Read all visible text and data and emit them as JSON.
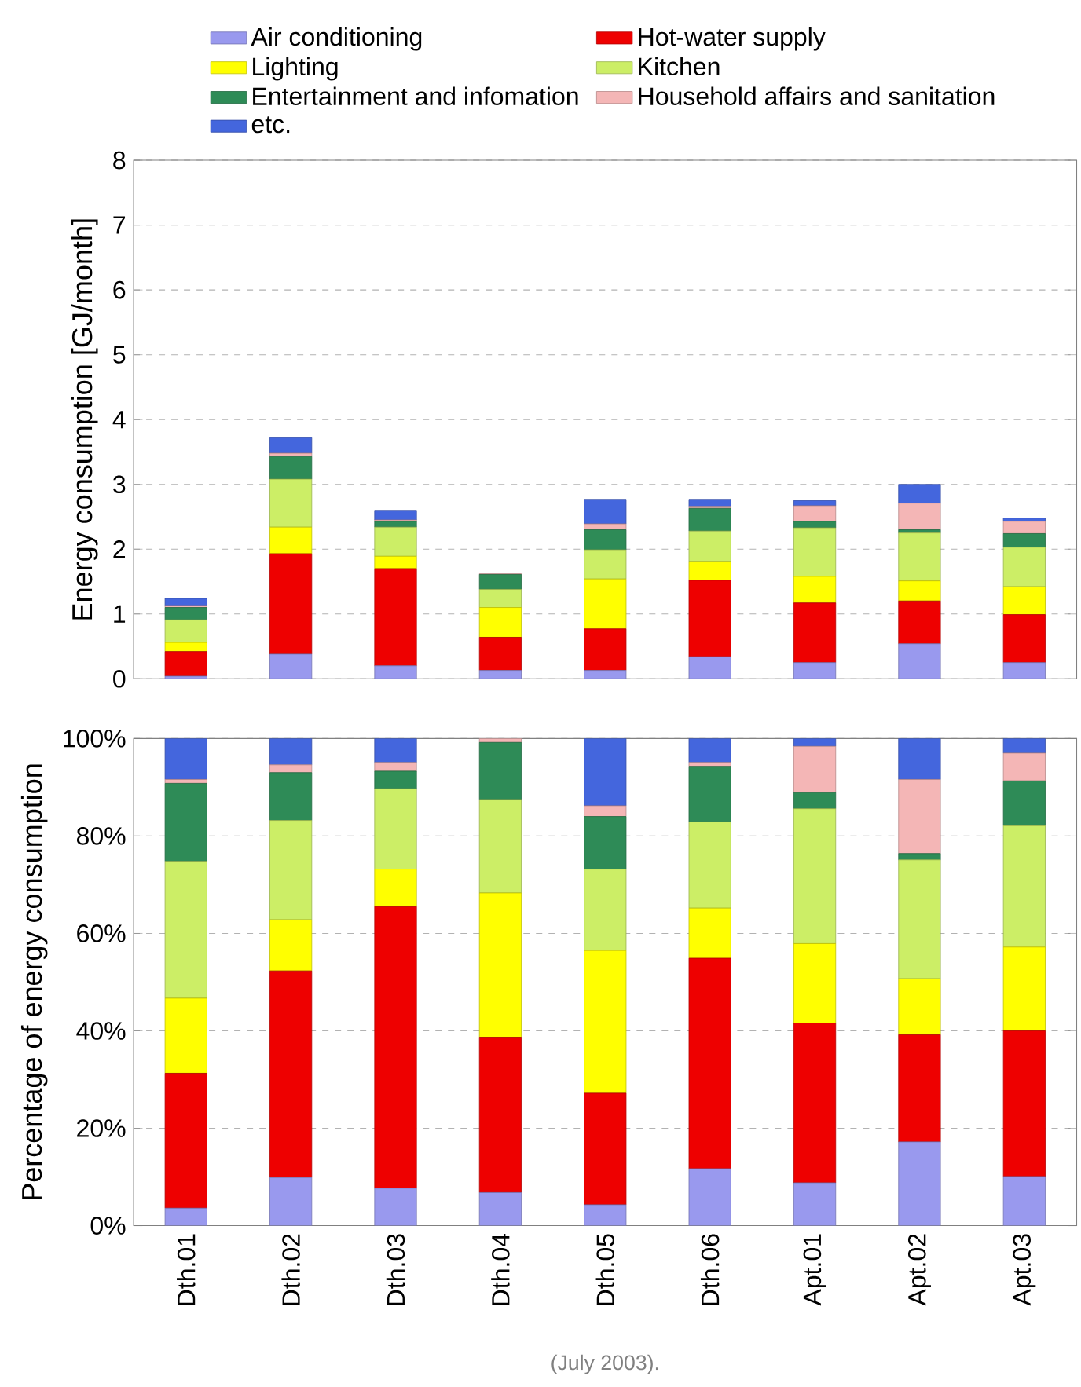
{
  "chart_data": [
    {
      "type": "bar",
      "stacked": true,
      "ylabel": "Energy consumption [GJ/month]",
      "categories": [
        null,
        null,
        null,
        null,
        null,
        null,
        null,
        null,
        null
      ],
      "ylim": [
        0,
        8
      ],
      "yticks": [
        0,
        1,
        2,
        3,
        4,
        5,
        6,
        7,
        8
      ],
      "grid": "y",
      "legend": "top",
      "tick_labels": "y",
      "series": [
        {
          "name": "Air conditioning",
          "color": "#9999ee",
          "values": [
            0.04,
            0.38,
            0.2,
            0.13,
            0.13,
            0.34,
            0.25,
            0.54,
            0.25
          ]
        },
        {
          "name": "Hot-water supply",
          "color": "#ee0000",
          "values": [
            0.38,
            1.55,
            1.5,
            0.51,
            0.64,
            1.18,
            0.92,
            0.66,
            0.74
          ]
        },
        {
          "name": "Lighting",
          "color": "#ffff00",
          "values": [
            0.14,
            0.41,
            0.19,
            0.46,
            0.77,
            0.29,
            0.41,
            0.31,
            0.43
          ]
        },
        {
          "name": "Kitchen",
          "color": "#ccee66",
          "values": [
            0.35,
            0.74,
            0.45,
            0.28,
            0.45,
            0.47,
            0.75,
            0.74,
            0.61
          ]
        },
        {
          "name": "Entertainment and infomation",
          "color": "#2e8b57",
          "values": [
            0.19,
            0.35,
            0.09,
            0.23,
            0.31,
            0.35,
            0.1,
            0.05,
            0.21
          ]
        },
        {
          "name": "Household affairs and sanitation",
          "color": "#f4b6b6",
          "values": [
            0.03,
            0.05,
            0.02,
            0.01,
            0.09,
            0.03,
            0.24,
            0.41,
            0.19
          ]
        },
        {
          "name": "etc.",
          "color": "#4466dd",
          "values": [
            0.11,
            0.24,
            0.15,
            0.0,
            0.38,
            0.11,
            0.08,
            0.29,
            0.05
          ]
        }
      ]
    },
    {
      "type": "bar",
      "stacked": true,
      "ylabel": "Percentage of energy consumption",
      "categories": [
        "Dth.01",
        "Dth.02",
        "Dth.03",
        "Dth.04",
        "Dth.05",
        "Dth.06",
        "Apt.01",
        "Apt.02",
        "Apt.03"
      ],
      "ylim": [
        0,
        100
      ],
      "yticks": [
        {
          "value": 0,
          "label": "0%"
        },
        {
          "value": 20,
          "label": "20%"
        },
        {
          "value": 40,
          "label": "40%"
        },
        {
          "value": 60,
          "label": "60%"
        },
        {
          "value": 80,
          "label": "80%"
        },
        {
          "value": 100,
          "label": "100%"
        }
      ],
      "grid": "y",
      "annotations": [
        "(July 2003)."
      ],
      "series": [
        {
          "color": "#9999ee",
          "values": [
            3.6,
            9.9,
            7.7,
            6.8,
            4.3,
            11.7,
            8.8,
            17.2,
            10.1
          ]
        },
        {
          "color": "#ee0000",
          "values": [
            27.7,
            42.4,
            57.8,
            31.9,
            22.9,
            43.2,
            32.8,
            22.0,
            29.9
          ]
        },
        {
          "color": "#ffff00",
          "values": [
            15.4,
            10.5,
            7.7,
            29.6,
            29.3,
            10.3,
            16.3,
            11.5,
            17.2
          ]
        },
        {
          "color": "#ccee66",
          "values": [
            28.1,
            20.4,
            16.5,
            19.2,
            16.7,
            17.7,
            27.7,
            24.4,
            24.9
          ]
        },
        {
          "color": "#2e8b57",
          "values": [
            16.0,
            9.8,
            3.6,
            11.7,
            10.8,
            11.4,
            3.3,
            1.3,
            9.2
          ]
        },
        {
          "color": "#f4b6b6",
          "values": [
            0.8,
            1.6,
            1.8,
            0.8,
            2.2,
            0.8,
            9.5,
            15.2,
            5.7
          ]
        },
        {
          "color": "#4466dd",
          "values": [
            8.4,
            5.4,
            4.9,
            0.0,
            13.8,
            4.9,
            1.6,
            8.4,
            3.0
          ]
        }
      ]
    }
  ]
}
